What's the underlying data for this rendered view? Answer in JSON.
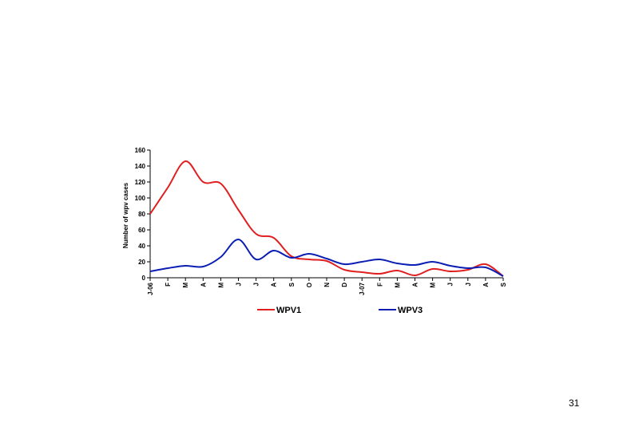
{
  "page": {
    "number": "31"
  },
  "chart_data": {
    "type": "line",
    "title": "",
    "xlabel": "",
    "ylabel": "Number of wpv cases",
    "ylim": [
      0,
      160
    ],
    "yticks": [
      0,
      20,
      40,
      60,
      80,
      100,
      120,
      140,
      160
    ],
    "grid": false,
    "legend": "bottom",
    "categories": [
      "J-06",
      "F",
      "M",
      "A",
      "M",
      "J",
      "J",
      "A",
      "S",
      "O",
      "N",
      "D",
      "J-07",
      "F",
      "M",
      "A",
      "M",
      "J",
      "J",
      "A",
      "S"
    ],
    "series": [
      {
        "name": "WPV1",
        "color": "#e02020",
        "values": [
          80,
          113,
          146,
          120,
          118,
          85,
          55,
          50,
          27,
          23,
          21,
          10,
          7,
          5,
          9,
          3,
          11,
          8,
          10,
          17,
          2
        ]
      },
      {
        "name": "WPV3",
        "color": "#0a1eb4",
        "values": [
          8,
          12,
          15,
          14,
          26,
          48,
          23,
          34,
          25,
          30,
          24,
          17,
          20,
          23,
          18,
          16,
          20,
          15,
          12,
          13,
          2
        ]
      }
    ]
  }
}
